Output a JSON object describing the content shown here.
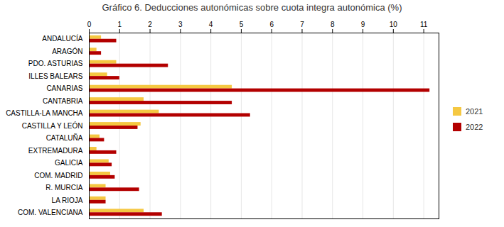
{
  "chart_data": {
    "type": "bar",
    "orientation": "horizontal",
    "title": "Gráfico 6. Deducciones autonómicas sobre cuota integra autonómica (%)",
    "categories": [
      "ANDALUCÍA",
      "ARAGÓN",
      "PDO. ASTURIAS",
      "ILLES BALEARS",
      "CANARIAS",
      "CANTABRIA",
      "CASTILLA-LA MANCHA",
      "CASTILLA Y LEÓN",
      "CATALUÑA",
      "EXTREMADURA",
      "GALICIA",
      "COM. MADRID",
      "R. MURCIA",
      "LA RIOJA",
      "COM. VALENCIANA"
    ],
    "series": [
      {
        "name": "2021",
        "color": "#F5C842",
        "values": [
          0.4,
          0.25,
          0.9,
          0.6,
          4.7,
          1.8,
          2.3,
          1.7,
          0.35,
          0.25,
          0.65,
          0.7,
          0.55,
          0.55,
          1.8
        ]
      },
      {
        "name": "2022",
        "color": "#B30000",
        "values": [
          0.9,
          0.4,
          2.6,
          1.0,
          11.2,
          4.7,
          5.3,
          1.6,
          0.5,
          0.9,
          0.75,
          0.85,
          1.65,
          0.55,
          2.4
        ]
      }
    ],
    "xlim": [
      0,
      11.5
    ],
    "xticks": [
      0,
      1,
      2,
      3,
      4,
      5,
      6,
      7,
      8,
      9,
      10,
      11
    ],
    "grid": true,
    "legend": "right"
  }
}
